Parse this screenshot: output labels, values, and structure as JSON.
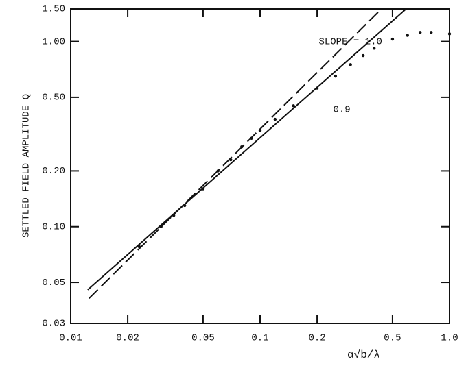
{
  "chart_data": {
    "type": "line",
    "ylabel": "SETTLED FIELD AMPLITUDE Q",
    "xlabel": "α√b/λ",
    "xscale": "log",
    "yscale": "log",
    "xlim": [
      0.01,
      1
    ],
    "ylim": [
      0.03,
      1.5
    ],
    "xticks": [
      0.01,
      0.02,
      0.05,
      0.1,
      0.2,
      0.5,
      {
        "value": 1,
        "label": "1.0"
      }
    ],
    "yticks": [
      0.03,
      0.05,
      {
        "value": 0.1,
        "label": "0.10"
      },
      {
        "value": 0.2,
        "label": "0.20"
      },
      {
        "value": 0.5,
        "label": "0.50"
      },
      {
        "value": 1,
        "label": "1.00"
      },
      {
        "value": 1.5,
        "label": "1.50"
      }
    ],
    "annotations": [
      {
        "text": "SLOPE = 1.0",
        "x": 0.3,
        "y": 1.0
      },
      {
        "text": "0.9",
        "x": 0.27,
        "y": 0.43
      }
    ],
    "series": [
      {
        "style": "solid",
        "color": "#111111",
        "x": [
          0.0123,
          0.59
        ],
        "values": [
          0.0456,
          1.5
        ]
      },
      {
        "style": "dashed",
        "color": "#111111",
        "x": [
          0.0125,
          0.42
        ],
        "values": [
          0.041,
          1.44
        ]
      },
      {
        "style": "dotted",
        "color": "#111111",
        "x": [
          0.023,
          0.03,
          0.035,
          0.04,
          0.05,
          0.06,
          0.07,
          0.08,
          0.09,
          0.1,
          0.12,
          0.15,
          0.2,
          0.25,
          0.3,
          0.35,
          0.4,
          0.5,
          0.6,
          0.7,
          0.8,
          1.0
        ],
        "values": [
          0.078,
          0.1,
          0.115,
          0.13,
          0.16,
          0.2,
          0.23,
          0.27,
          0.3,
          0.33,
          0.38,
          0.45,
          0.56,
          0.65,
          0.75,
          0.84,
          0.92,
          1.03,
          1.08,
          1.12,
          1.12,
          1.1
        ]
      }
    ]
  }
}
